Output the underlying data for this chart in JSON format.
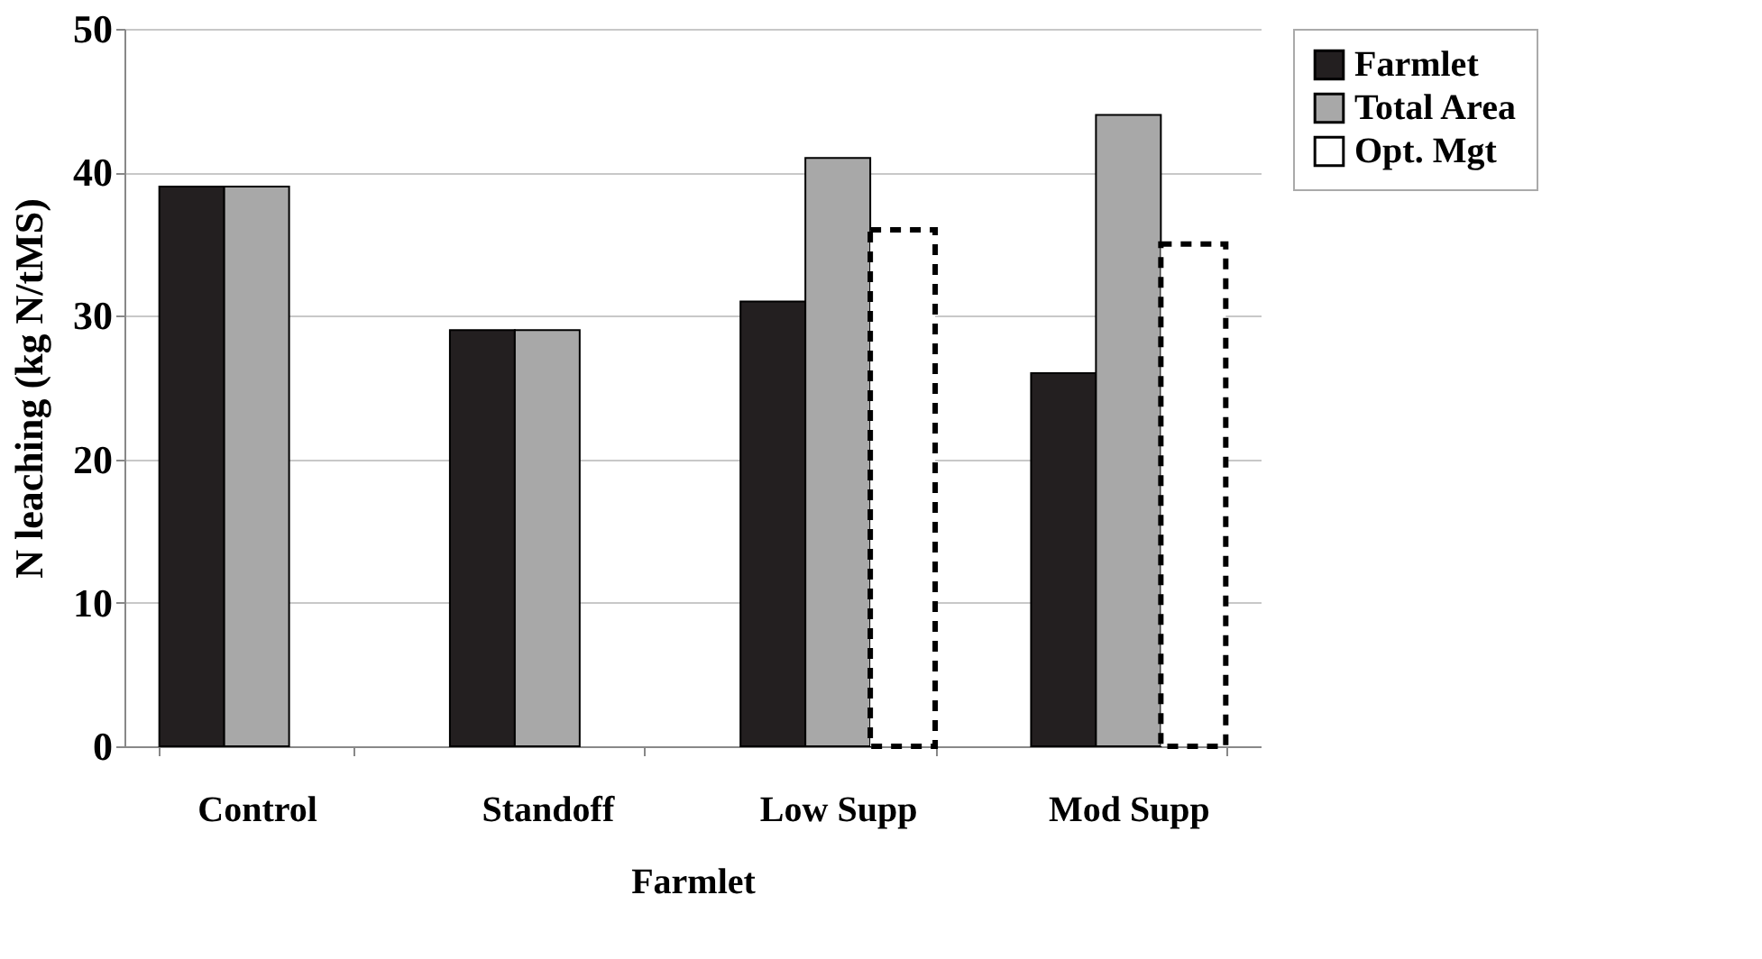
{
  "chart_data": {
    "type": "bar",
    "xlabel": "Farmlet",
    "ylabel": "N leaching (kg N/tMS)",
    "categories": [
      "Control",
      "Standoff",
      "Low Supp",
      "Mod Supp"
    ],
    "series": [
      {
        "name": "Farmlet",
        "color": "#231f20",
        "values": [
          39,
          29,
          31,
          26
        ]
      },
      {
        "name": "Total Area",
        "color": "#a8a8a8",
        "values": [
          39,
          29,
          41,
          44
        ]
      },
      {
        "name": "Opt. Mgt",
        "color": "#ffffff",
        "line_style": "dashed",
        "values": [
          null,
          null,
          36,
          35
        ]
      }
    ],
    "ylim": [
      0,
      50
    ],
    "yticks": [
      0,
      10,
      20,
      30,
      40,
      50
    ],
    "grid": "y",
    "legend": "right"
  }
}
